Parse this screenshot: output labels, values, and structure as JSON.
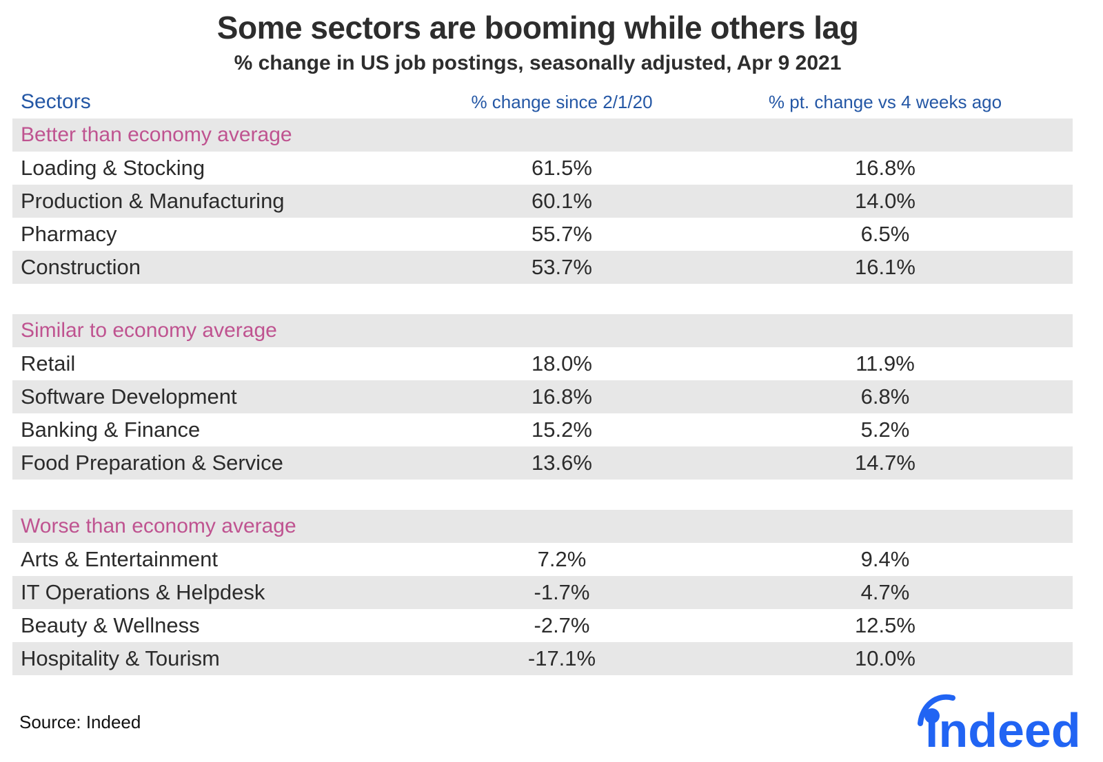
{
  "title": "Some sectors are booming while others lag",
  "subtitle": "% change in US job postings, seasonally adjusted, Apr 9 2021",
  "columns": {
    "sector": "Sectors",
    "change_since": "% change since 2/1/20",
    "pt_change": "% pt. change vs 4 weeks ago"
  },
  "sections": [
    {
      "label": "Better than economy average",
      "rows": [
        {
          "sector": "Loading & Stocking",
          "change": "61.5%",
          "pt": "16.8%"
        },
        {
          "sector": "Production & Manufacturing",
          "change": "60.1%",
          "pt": "14.0%"
        },
        {
          "sector": "Pharmacy",
          "change": "55.7%",
          "pt": "6.5%"
        },
        {
          "sector": "Construction",
          "change": "53.7%",
          "pt": "16.1%"
        }
      ]
    },
    {
      "label": "Similar to economy average",
      "rows": [
        {
          "sector": "Retail",
          "change": "18.0%",
          "pt": "11.9%"
        },
        {
          "sector": "Software Development",
          "change": "16.8%",
          "pt": "6.8%"
        },
        {
          "sector": "Banking & Finance",
          "change": "15.2%",
          "pt": "5.2%"
        },
        {
          "sector": "Food Preparation & Service",
          "change": "13.6%",
          "pt": "14.7%"
        }
      ]
    },
    {
      "label": "Worse than economy average",
      "rows": [
        {
          "sector": "Arts & Entertainment",
          "change": "7.2%",
          "pt": "9.4%"
        },
        {
          "sector": "IT Operations & Helpdesk",
          "change": "-1.7%",
          "pt": "4.7%"
        },
        {
          "sector": "Beauty & Wellness",
          "change": "-2.7%",
          "pt": "12.5%"
        },
        {
          "sector": "Hospitality & Tourism",
          "change": "-17.1%",
          "pt": "10.0%"
        }
      ]
    }
  ],
  "footer": {
    "source": "Source: Indeed",
    "logo_text": "indeed"
  },
  "colors": {
    "header_blue": "#2457a5",
    "section_pink": "#bf5390",
    "row_gray": "#e7e7e7",
    "text_dark": "#2d2d2d",
    "logo_blue": "#2164f3"
  },
  "chart_data": {
    "type": "table",
    "title": "Some sectors are booming while others lag",
    "subtitle": "% change in US job postings, seasonally adjusted, Apr 9 2021",
    "columns": [
      "Sectors",
      "% change since 2/1/20",
      "% pt. change vs 4 weeks ago"
    ],
    "groups": [
      {
        "group": "Better than economy average",
        "rows": [
          [
            "Loading & Stocking",
            61.5,
            16.8
          ],
          [
            "Production & Manufacturing",
            60.1,
            14.0
          ],
          [
            "Pharmacy",
            55.7,
            6.5
          ],
          [
            "Construction",
            53.7,
            16.1
          ]
        ]
      },
      {
        "group": "Similar to economy average",
        "rows": [
          [
            "Retail",
            18.0,
            11.9
          ],
          [
            "Software Development",
            16.8,
            6.8
          ],
          [
            "Banking & Finance",
            15.2,
            5.2
          ],
          [
            "Food Preparation & Service",
            13.6,
            14.7
          ]
        ]
      },
      {
        "group": "Worse than economy average",
        "rows": [
          [
            "Arts & Entertainment",
            7.2,
            9.4
          ],
          [
            "IT Operations & Helpdesk",
            -1.7,
            4.7
          ],
          [
            "Beauty & Wellness",
            -2.7,
            12.5
          ],
          [
            "Hospitality & Tourism",
            -17.1,
            10.0
          ]
        ]
      }
    ],
    "units": "percent",
    "source": "Indeed"
  }
}
